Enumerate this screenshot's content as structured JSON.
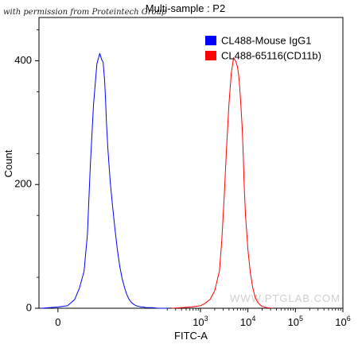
{
  "credit": "with permission from Proteintech Group",
  "watermark": "WWW.PTGLAB.COM",
  "chart_data": {
    "type": "area",
    "title": "Multi-sample : P2",
    "xlabel": "FITC-A",
    "ylabel": "Count",
    "x_scale": "log",
    "xlim_log10": [
      -0.4,
      6.0
    ],
    "ylim": [
      0,
      470
    ],
    "grid": false,
    "legend": "top-right",
    "xticks": [
      {
        "value": 0,
        "base": "0",
        "exp": ""
      },
      {
        "value": 1000,
        "base": "10",
        "exp": "3"
      },
      {
        "value": 10000,
        "base": "10",
        "exp": "4"
      },
      {
        "value": 100000,
        "base": "10",
        "exp": "5"
      },
      {
        "value": 1000000,
        "base": "10",
        "exp": "6"
      }
    ],
    "yticks": [
      0,
      200,
      400
    ],
    "series": [
      {
        "name": "CL488-Mouse IgG1",
        "color": "#0000ff",
        "x_log10": [
          -0.35,
          0.0,
          0.2,
          0.35,
          0.45,
          0.55,
          0.62,
          0.68,
          0.75,
          0.82,
          0.88,
          0.92,
          0.95,
          0.98,
          1.0,
          1.02,
          1.05,
          1.1,
          1.15,
          1.2,
          1.25,
          1.3,
          1.35,
          1.4,
          1.45,
          1.5,
          1.55,
          1.6,
          1.65,
          1.7,
          1.75,
          1.8,
          1.85,
          1.9,
          2.0,
          2.1,
          2.2,
          2.3
        ],
        "y": [
          0,
          2,
          4,
          14,
          32,
          60,
          120,
          230,
          330,
          395,
          412,
          402,
          398,
          370,
          340,
          300,
          260,
          205,
          165,
          128,
          95,
          68,
          48,
          34,
          22,
          14,
          9,
          6,
          4,
          3,
          2,
          2,
          1,
          1,
          1,
          0,
          0,
          0
        ]
      },
      {
        "name": "CL488-65116(CD11b)",
        "color": "#ff0000",
        "x_log10": [
          2.4,
          2.6,
          2.8,
          3.0,
          3.1,
          3.2,
          3.3,
          3.4,
          3.45,
          3.5,
          3.55,
          3.6,
          3.65,
          3.7,
          3.75,
          3.78,
          3.8,
          3.82,
          3.85,
          3.88,
          3.9,
          3.92,
          3.95,
          4.0,
          4.05,
          4.1,
          4.15,
          4.2,
          4.25,
          4.3,
          4.4,
          4.5
        ],
        "y": [
          0,
          1,
          2,
          4,
          8,
          14,
          28,
          60,
          110,
          180,
          260,
          330,
          380,
          405,
          398,
          390,
          380,
          365,
          330,
          290,
          250,
          200,
          150,
          95,
          58,
          34,
          18,
          10,
          6,
          3,
          1,
          0
        ]
      }
    ]
  }
}
